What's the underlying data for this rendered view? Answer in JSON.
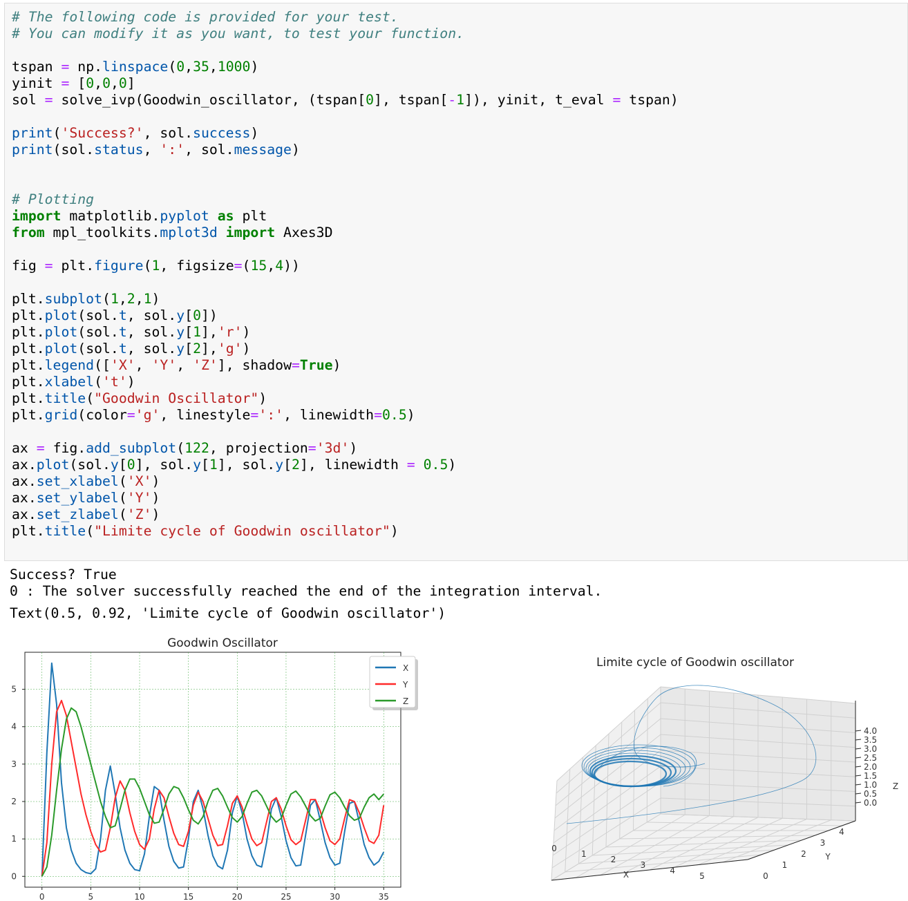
{
  "code_lines": [
    [
      [
        "cm",
        "# The following code is provided for your test."
      ]
    ],
    [
      [
        "cm",
        "# You can modify it as you want, to test your function."
      ]
    ],
    [],
    [
      [
        "",
        "tspan "
      ],
      [
        "op",
        "="
      ],
      [
        "",
        " np."
      ],
      [
        "at",
        "linspace"
      ],
      [
        "",
        "("
      ],
      [
        "num",
        "0"
      ],
      [
        "",
        ","
      ],
      [
        "num",
        "35"
      ],
      [
        "",
        ","
      ],
      [
        "num",
        "1000"
      ],
      [
        "",
        ")"
      ]
    ],
    [
      [
        "",
        "yinit "
      ],
      [
        "op",
        "="
      ],
      [
        "",
        " ["
      ],
      [
        "num",
        "0"
      ],
      [
        "",
        ","
      ],
      [
        "num",
        "0"
      ],
      [
        "",
        ","
      ],
      [
        "num",
        "0"
      ],
      [
        "",
        "]"
      ]
    ],
    [
      [
        "",
        "sol "
      ],
      [
        "op",
        "="
      ],
      [
        "",
        " solve_ivp(Goodwin_oscillator, (tspan["
      ],
      [
        "num",
        "0"
      ],
      [
        "",
        "], tspan["
      ],
      [
        "op",
        "-"
      ],
      [
        "num",
        "1"
      ],
      [
        "",
        "]), yinit, t_eval "
      ],
      [
        "op",
        "="
      ],
      [
        "",
        " tspan)"
      ]
    ],
    [],
    [
      [
        "at",
        "print"
      ],
      [
        "",
        "("
      ],
      [
        "str",
        "'Success?'"
      ],
      [
        "",
        ", sol."
      ],
      [
        "at",
        "success"
      ],
      [
        "",
        ")"
      ]
    ],
    [
      [
        "at",
        "print"
      ],
      [
        "",
        "(sol."
      ],
      [
        "at",
        "status"
      ],
      [
        "",
        ", "
      ],
      [
        "str",
        "':'"
      ],
      [
        "",
        ", sol."
      ],
      [
        "at",
        "message"
      ],
      [
        "",
        ")"
      ]
    ],
    [],
    [],
    [
      [
        "cm",
        "# Plotting"
      ]
    ],
    [
      [
        "kw",
        "import"
      ],
      [
        "",
        " matplotlib."
      ],
      [
        "at",
        "pyplot"
      ],
      [
        "",
        ""
      ],
      [
        "kw",
        " as"
      ],
      [
        "",
        " plt"
      ]
    ],
    [
      [
        "kw",
        "from"
      ],
      [
        "",
        " mpl_toolkits."
      ],
      [
        "at",
        "mplot3d"
      ],
      [
        "kw",
        " import"
      ],
      [
        "",
        " Axes3D"
      ]
    ],
    [],
    [
      [
        "",
        "fig "
      ],
      [
        "op",
        "="
      ],
      [
        "",
        " plt."
      ],
      [
        "at",
        "figure"
      ],
      [
        "",
        "("
      ],
      [
        "num",
        "1"
      ],
      [
        "",
        ", figsize"
      ],
      [
        "op",
        "="
      ],
      [
        "",
        "("
      ],
      [
        "num",
        "15"
      ],
      [
        "",
        ","
      ],
      [
        "num",
        "4"
      ],
      [
        "",
        "))"
      ]
    ],
    [],
    [
      [
        "",
        "plt."
      ],
      [
        "at",
        "subplot"
      ],
      [
        "",
        "("
      ],
      [
        "num",
        "1"
      ],
      [
        "",
        ","
      ],
      [
        "num",
        "2"
      ],
      [
        "",
        ","
      ],
      [
        "num",
        "1"
      ],
      [
        "",
        ")"
      ]
    ],
    [
      [
        "",
        "plt."
      ],
      [
        "at",
        "plot"
      ],
      [
        "",
        "(sol."
      ],
      [
        "at",
        "t"
      ],
      [
        "",
        ", sol."
      ],
      [
        "at",
        "y"
      ],
      [
        "",
        "["
      ],
      [
        "num",
        "0"
      ],
      [
        "",
        "])"
      ]
    ],
    [
      [
        "",
        "plt."
      ],
      [
        "at",
        "plot"
      ],
      [
        "",
        "(sol."
      ],
      [
        "at",
        "t"
      ],
      [
        "",
        ", sol."
      ],
      [
        "at",
        "y"
      ],
      [
        "",
        "["
      ],
      [
        "num",
        "1"
      ],
      [
        "",
        "],"
      ],
      [
        "str",
        "'r'"
      ],
      [
        "",
        ")"
      ]
    ],
    [
      [
        "",
        "plt."
      ],
      [
        "at",
        "plot"
      ],
      [
        "",
        "(sol."
      ],
      [
        "at",
        "t"
      ],
      [
        "",
        ", sol."
      ],
      [
        "at",
        "y"
      ],
      [
        "",
        "["
      ],
      [
        "num",
        "2"
      ],
      [
        "",
        "],"
      ],
      [
        "str",
        "'g'"
      ],
      [
        "",
        ")"
      ]
    ],
    [
      [
        "",
        "plt."
      ],
      [
        "at",
        "legend"
      ],
      [
        "",
        "(["
      ],
      [
        "str",
        "'X'"
      ],
      [
        "",
        ", "
      ],
      [
        "str",
        "'Y'"
      ],
      [
        "",
        ", "
      ],
      [
        "str",
        "'Z'"
      ],
      [
        "",
        "], shadow"
      ],
      [
        "op",
        "="
      ],
      [
        "kw",
        "True"
      ],
      [
        "",
        ")"
      ]
    ],
    [
      [
        "",
        "plt."
      ],
      [
        "at",
        "xlabel"
      ],
      [
        "",
        "("
      ],
      [
        "str",
        "'t'"
      ],
      [
        "",
        ")"
      ]
    ],
    [
      [
        "",
        "plt."
      ],
      [
        "at",
        "title"
      ],
      [
        "",
        "("
      ],
      [
        "str",
        "\"Goodwin Oscillator\""
      ],
      [
        "",
        ")"
      ]
    ],
    [
      [
        "",
        "plt."
      ],
      [
        "at",
        "grid"
      ],
      [
        "",
        "(color"
      ],
      [
        "op",
        "="
      ],
      [
        "str",
        "'g'"
      ],
      [
        "",
        ", linestyle"
      ],
      [
        "op",
        "="
      ],
      [
        "str",
        "':'"
      ],
      [
        "",
        ", linewidth"
      ],
      [
        "op",
        "="
      ],
      [
        "num",
        "0.5"
      ],
      [
        "",
        ")"
      ]
    ],
    [],
    [
      [
        "",
        "ax "
      ],
      [
        "op",
        "="
      ],
      [
        "",
        " fig."
      ],
      [
        "at",
        "add_subplot"
      ],
      [
        "",
        "("
      ],
      [
        "num",
        "122"
      ],
      [
        "",
        ", projection"
      ],
      [
        "op",
        "="
      ],
      [
        "str",
        "'3d'"
      ],
      [
        "",
        ")"
      ]
    ],
    [
      [
        "",
        "ax."
      ],
      [
        "at",
        "plot"
      ],
      [
        "",
        "(sol."
      ],
      [
        "at",
        "y"
      ],
      [
        "",
        "["
      ],
      [
        "num",
        "0"
      ],
      [
        "",
        "], sol."
      ],
      [
        "at",
        "y"
      ],
      [
        "",
        "["
      ],
      [
        "num",
        "1"
      ],
      [
        "",
        "], sol."
      ],
      [
        "at",
        "y"
      ],
      [
        "",
        "["
      ],
      [
        "num",
        "2"
      ],
      [
        "",
        "], linewidth "
      ],
      [
        "op",
        "="
      ],
      [
        "num",
        " 0.5"
      ],
      [
        "",
        ")"
      ]
    ],
    [
      [
        "",
        "ax."
      ],
      [
        "at",
        "set_xlabel"
      ],
      [
        "",
        "("
      ],
      [
        "str",
        "'X'"
      ],
      [
        "",
        ")"
      ]
    ],
    [
      [
        "",
        "ax."
      ],
      [
        "at",
        "set_ylabel"
      ],
      [
        "",
        "("
      ],
      [
        "str",
        "'Y'"
      ],
      [
        "",
        ")"
      ]
    ],
    [
      [
        "",
        "ax."
      ],
      [
        "at",
        "set_zlabel"
      ],
      [
        "",
        "("
      ],
      [
        "str",
        "'Z'"
      ],
      [
        "",
        ")"
      ]
    ],
    [
      [
        "",
        "plt."
      ],
      [
        "at",
        "title"
      ],
      [
        "",
        "("
      ],
      [
        "str",
        "\"Limite cycle of Goodwin oscillator\""
      ],
      [
        "",
        ")"
      ]
    ]
  ],
  "output": {
    "line1": "Success? True",
    "line2": "0 : The solver successfully reached the end of the integration interval.",
    "line3": "Text(0.5, 0.92, 'Limite cycle of Goodwin oscillator')"
  },
  "chart_data": [
    {
      "type": "line",
      "title": "Goodwin Oscillator",
      "xlabel": "",
      "ylabel": "",
      "xlim": [
        -1.75,
        36.75
      ],
      "ylim": [
        -0.29,
        5.99
      ],
      "x_ticks": [
        0,
        5,
        10,
        15,
        20,
        25,
        30,
        35
      ],
      "y_ticks": [
        0,
        1,
        2,
        3,
        4,
        5
      ],
      "grid": true,
      "legend_position": "top-right",
      "x": [
        0,
        0.5,
        1,
        1.5,
        2,
        2.5,
        3,
        3.5,
        4,
        4.5,
        5,
        5.5,
        6,
        6.5,
        7,
        7.5,
        8,
        8.5,
        9,
        9.5,
        10,
        10.5,
        11,
        11.5,
        12,
        12.5,
        13,
        13.5,
        14,
        14.5,
        15,
        15.5,
        16,
        16.5,
        17,
        17.5,
        18,
        18.5,
        19,
        19.5,
        20,
        20.5,
        21,
        21.5,
        22,
        22.5,
        23,
        23.5,
        24,
        24.5,
        25,
        25.5,
        26,
        26.5,
        27,
        27.5,
        28,
        28.5,
        29,
        29.5,
        30,
        30.5,
        31,
        31.5,
        32,
        32.5,
        33,
        33.5,
        34,
        34.5,
        35
      ],
      "series": [
        {
          "name": "X",
          "color": "#1f77b4",
          "values": [
            0,
            3.3,
            5.7,
            4.6,
            2.5,
            1.3,
            0.7,
            0.35,
            0.18,
            0.1,
            0.07,
            0.2,
            1.0,
            2.3,
            2.95,
            2.2,
            1.3,
            0.7,
            0.35,
            0.18,
            0.15,
            0.6,
            1.6,
            2.4,
            2.3,
            1.5,
            0.8,
            0.4,
            0.22,
            0.25,
            1.0,
            2.0,
            2.3,
            1.8,
            1.1,
            0.55,
            0.28,
            0.2,
            0.7,
            1.7,
            2.15,
            1.7,
            1.0,
            0.55,
            0.3,
            0.25,
            0.9,
            1.8,
            2.1,
            1.6,
            0.95,
            0.5,
            0.28,
            0.3,
            1.1,
            1.9,
            2.05,
            1.5,
            0.9,
            0.5,
            0.3,
            0.35,
            1.2,
            1.95,
            2.0,
            1.45,
            0.85,
            0.5,
            0.3,
            0.4,
            0.65
          ]
        },
        {
          "name": "Y",
          "color": "#ff2a2a",
          "values": [
            0,
            0.9,
            3.0,
            4.4,
            4.7,
            4.3,
            3.6,
            2.9,
            2.2,
            1.65,
            1.2,
            0.85,
            0.65,
            0.7,
            1.3,
            2.1,
            2.55,
            2.3,
            1.7,
            1.2,
            0.85,
            0.72,
            1.0,
            1.8,
            2.3,
            2.1,
            1.6,
            1.15,
            0.85,
            0.8,
            1.2,
            1.9,
            2.25,
            2.0,
            1.55,
            1.1,
            0.82,
            0.85,
            1.35,
            1.95,
            2.15,
            1.85,
            1.4,
            1.0,
            0.82,
            0.9,
            1.45,
            2.0,
            2.1,
            1.8,
            1.35,
            0.98,
            0.85,
            0.95,
            1.5,
            2.05,
            2.05,
            1.75,
            1.3,
            0.95,
            0.85,
            1.0,
            1.55,
            2.05,
            2.0,
            1.7,
            1.3,
            0.95,
            0.88,
            1.1,
            1.9
          ]
        },
        {
          "name": "Z",
          "color": "#2a9a2a",
          "values": [
            0,
            0.25,
            1.1,
            2.3,
            3.4,
            4.2,
            4.5,
            4.4,
            4.0,
            3.5,
            3.0,
            2.5,
            2.0,
            1.6,
            1.3,
            1.35,
            1.8,
            2.3,
            2.6,
            2.6,
            2.35,
            2.0,
            1.65,
            1.42,
            1.45,
            1.8,
            2.2,
            2.4,
            2.35,
            2.1,
            1.78,
            1.5,
            1.4,
            1.6,
            2.0,
            2.3,
            2.35,
            2.15,
            1.85,
            1.57,
            1.45,
            1.6,
            1.95,
            2.25,
            2.3,
            2.15,
            1.88,
            1.6,
            1.45,
            1.55,
            1.9,
            2.2,
            2.28,
            2.12,
            1.88,
            1.62,
            1.48,
            1.55,
            1.88,
            2.18,
            2.25,
            2.1,
            1.85,
            1.62,
            1.5,
            1.55,
            1.85,
            2.1,
            2.2,
            2.05,
            2.2
          ]
        }
      ]
    },
    {
      "type": "line",
      "title": "Limite cycle of Goodwin oscillator",
      "xlabel": "X",
      "ylabel": "Y",
      "zlabel": "Z",
      "x_ticks": [
        0,
        1,
        2,
        3,
        4,
        5
      ],
      "y_ticks": [
        0,
        1,
        2,
        3,
        4
      ],
      "z_ticks": [
        0.0,
        0.5,
        1.0,
        1.5,
        2.0,
        2.5,
        3.0,
        3.5,
        4.0
      ],
      "grid": true,
      "series": [
        {
          "name": "",
          "color": "#1f77b4",
          "description_points": []
        }
      ]
    }
  ]
}
